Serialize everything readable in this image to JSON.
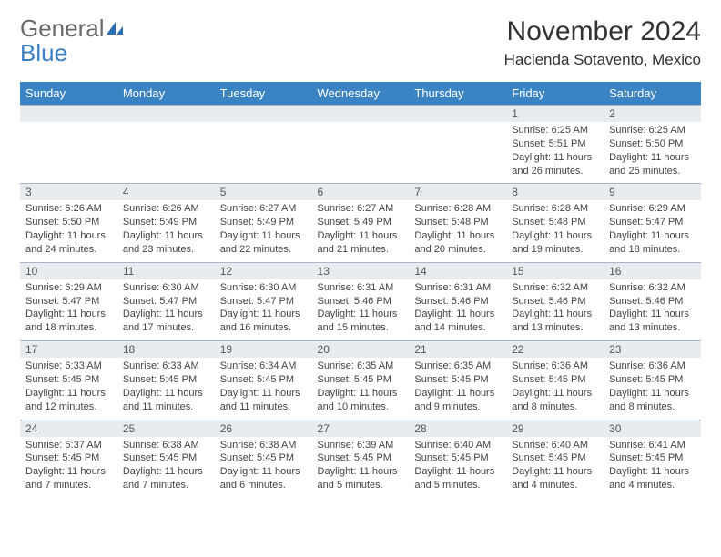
{
  "logo": {
    "text_general": "General",
    "text_blue": "Blue"
  },
  "title": "November 2024",
  "location": "Hacienda Sotavento, Mexico",
  "colors": {
    "header_bg": "#3b84c4",
    "header_text": "#ffffff",
    "daynum_bg": "#e9ecef",
    "border": "#a8b8c8",
    "logo_gray": "#6b6b6b",
    "logo_blue": "#3b7fc4"
  },
  "weekdays": [
    "Sunday",
    "Monday",
    "Tuesday",
    "Wednesday",
    "Thursday",
    "Friday",
    "Saturday"
  ],
  "weeks": [
    [
      null,
      null,
      null,
      null,
      null,
      {
        "n": "1",
        "sr": "6:25 AM",
        "ss": "5:51 PM",
        "dl": "11 hours and 26 minutes."
      },
      {
        "n": "2",
        "sr": "6:25 AM",
        "ss": "5:50 PM",
        "dl": "11 hours and 25 minutes."
      }
    ],
    [
      {
        "n": "3",
        "sr": "6:26 AM",
        "ss": "5:50 PM",
        "dl": "11 hours and 24 minutes."
      },
      {
        "n": "4",
        "sr": "6:26 AM",
        "ss": "5:49 PM",
        "dl": "11 hours and 23 minutes."
      },
      {
        "n": "5",
        "sr": "6:27 AM",
        "ss": "5:49 PM",
        "dl": "11 hours and 22 minutes."
      },
      {
        "n": "6",
        "sr": "6:27 AM",
        "ss": "5:49 PM",
        "dl": "11 hours and 21 minutes."
      },
      {
        "n": "7",
        "sr": "6:28 AM",
        "ss": "5:48 PM",
        "dl": "11 hours and 20 minutes."
      },
      {
        "n": "8",
        "sr": "6:28 AM",
        "ss": "5:48 PM",
        "dl": "11 hours and 19 minutes."
      },
      {
        "n": "9",
        "sr": "6:29 AM",
        "ss": "5:47 PM",
        "dl": "11 hours and 18 minutes."
      }
    ],
    [
      {
        "n": "10",
        "sr": "6:29 AM",
        "ss": "5:47 PM",
        "dl": "11 hours and 18 minutes."
      },
      {
        "n": "11",
        "sr": "6:30 AM",
        "ss": "5:47 PM",
        "dl": "11 hours and 17 minutes."
      },
      {
        "n": "12",
        "sr": "6:30 AM",
        "ss": "5:47 PM",
        "dl": "11 hours and 16 minutes."
      },
      {
        "n": "13",
        "sr": "6:31 AM",
        "ss": "5:46 PM",
        "dl": "11 hours and 15 minutes."
      },
      {
        "n": "14",
        "sr": "6:31 AM",
        "ss": "5:46 PM",
        "dl": "11 hours and 14 minutes."
      },
      {
        "n": "15",
        "sr": "6:32 AM",
        "ss": "5:46 PM",
        "dl": "11 hours and 13 minutes."
      },
      {
        "n": "16",
        "sr": "6:32 AM",
        "ss": "5:46 PM",
        "dl": "11 hours and 13 minutes."
      }
    ],
    [
      {
        "n": "17",
        "sr": "6:33 AM",
        "ss": "5:45 PM",
        "dl": "11 hours and 12 minutes."
      },
      {
        "n": "18",
        "sr": "6:33 AM",
        "ss": "5:45 PM",
        "dl": "11 hours and 11 minutes."
      },
      {
        "n": "19",
        "sr": "6:34 AM",
        "ss": "5:45 PM",
        "dl": "11 hours and 11 minutes."
      },
      {
        "n": "20",
        "sr": "6:35 AM",
        "ss": "5:45 PM",
        "dl": "11 hours and 10 minutes."
      },
      {
        "n": "21",
        "sr": "6:35 AM",
        "ss": "5:45 PM",
        "dl": "11 hours and 9 minutes."
      },
      {
        "n": "22",
        "sr": "6:36 AM",
        "ss": "5:45 PM",
        "dl": "11 hours and 8 minutes."
      },
      {
        "n": "23",
        "sr": "6:36 AM",
        "ss": "5:45 PM",
        "dl": "11 hours and 8 minutes."
      }
    ],
    [
      {
        "n": "24",
        "sr": "6:37 AM",
        "ss": "5:45 PM",
        "dl": "11 hours and 7 minutes."
      },
      {
        "n": "25",
        "sr": "6:38 AM",
        "ss": "5:45 PM",
        "dl": "11 hours and 7 minutes."
      },
      {
        "n": "26",
        "sr": "6:38 AM",
        "ss": "5:45 PM",
        "dl": "11 hours and 6 minutes."
      },
      {
        "n": "27",
        "sr": "6:39 AM",
        "ss": "5:45 PM",
        "dl": "11 hours and 5 minutes."
      },
      {
        "n": "28",
        "sr": "6:40 AM",
        "ss": "5:45 PM",
        "dl": "11 hours and 5 minutes."
      },
      {
        "n": "29",
        "sr": "6:40 AM",
        "ss": "5:45 PM",
        "dl": "11 hours and 4 minutes."
      },
      {
        "n": "30",
        "sr": "6:41 AM",
        "ss": "5:45 PM",
        "dl": "11 hours and 4 minutes."
      }
    ]
  ],
  "labels": {
    "sunrise": "Sunrise:",
    "sunset": "Sunset:",
    "daylight": "Daylight:"
  }
}
